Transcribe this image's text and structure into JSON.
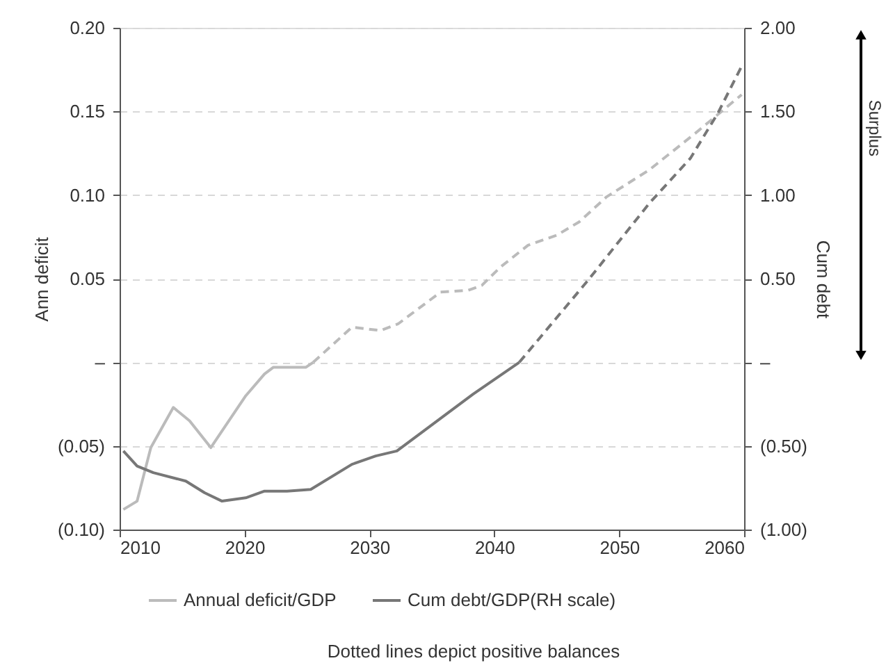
{
  "chart_data": {
    "type": "line",
    "ylabel": "Ann deficit",
    "y2label": "Cum debt",
    "xlim": [
      2010,
      2060
    ],
    "xticks": [
      2010,
      2020,
      2030,
      2040,
      2050,
      2060
    ],
    "ylim": [
      -0.1,
      0.2
    ],
    "yticks": [
      {
        "value": -0.1,
        "label": "(0.10)"
      },
      {
        "value": -0.05,
        "label": "(0.05)"
      },
      {
        "value": 0,
        "label": "–"
      },
      {
        "value": 0.05,
        "label": "0.05"
      },
      {
        "value": 0.1,
        "label": "0.10"
      },
      {
        "value": 0.15,
        "label": "0.15"
      },
      {
        "value": 0.2,
        "label": "0.20"
      }
    ],
    "y2lim": [
      -1,
      2
    ],
    "y2ticks": [
      {
        "value": -1,
        "label": "(1.00)"
      },
      {
        "value": -0.5,
        "label": "(0.50)"
      },
      {
        "value": 0,
        "label": "–"
      },
      {
        "value": 0.5,
        "label": "0.50"
      },
      {
        "value": 1,
        "label": "1.00"
      },
      {
        "value": 1.5,
        "label": "1.50"
      },
      {
        "value": 2,
        "label": "2.00"
      }
    ],
    "grid": "y",
    "legend": "bottom",
    "marker": "none",
    "series": [
      {
        "name": "Annual deficit/GDP",
        "color": "#bbbbbb",
        "line_style": "solid",
        "x": [
          2010.3,
          2011.4,
          2012.5,
          2014.3,
          2015.6,
          2017.3,
          2020.1,
          2021.6,
          2022.3,
          2024.9,
          2025.5
        ],
        "values": [
          -0.088,
          -0.083,
          -0.051,
          -0.027,
          -0.035,
          -0.051,
          -0.02,
          -0.007,
          -0.003,
          -0.003,
          0.0
        ]
      },
      {
        "color": "#bbbbbb",
        "line_style": "dashed",
        "x": [
          2025.5,
          2028.6,
          2030.9,
          2032.3,
          2035.7,
          2037.9,
          2039,
          2040.5,
          2042.7,
          2045,
          2046.8,
          2049,
          2052.4,
          2056.1,
          2059.8
        ],
        "values": [
          0.0,
          0.021,
          0.019,
          0.023,
          0.042,
          0.043,
          0.046,
          0.057,
          0.07,
          0.076,
          0.084,
          0.099,
          0.115,
          0.137,
          0.16
        ]
      },
      {
        "name": "Cum debt/GDP(RH scale)",
        "color": "#777777",
        "line_style": "solid",
        "axis": "y2",
        "x": [
          2010.3,
          2011.4,
          2012.7,
          2015.3,
          2016.8,
          2018.2,
          2020.1,
          2021.6,
          2023.4,
          2025.3,
          2028.6,
          2030.5,
          2032.2,
          2038.3,
          2042
        ],
        "values": [
          -0.53,
          -0.62,
          -0.66,
          -0.71,
          -0.78,
          -0.83,
          -0.81,
          -0.77,
          -0.77,
          -0.76,
          -0.61,
          -0.56,
          -0.53,
          -0.19,
          0.0
        ]
      },
      {
        "color": "#777777",
        "line_style": "dashed",
        "axis": "y2",
        "x": [
          2042,
          2047.5,
          2052.4,
          2055.7,
          2057.9,
          2059.8
        ],
        "values": [
          0.0,
          0.49,
          0.95,
          1.22,
          1.49,
          1.77
        ]
      }
    ],
    "annotations": [
      "Dotted lines depict positive balances",
      "Surplus"
    ]
  }
}
